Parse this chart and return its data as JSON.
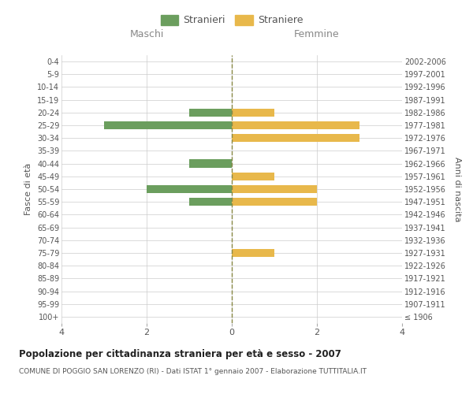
{
  "age_groups": [
    "100+",
    "95-99",
    "90-94",
    "85-89",
    "80-84",
    "75-79",
    "70-74",
    "65-69",
    "60-64",
    "55-59",
    "50-54",
    "45-49",
    "40-44",
    "35-39",
    "30-34",
    "25-29",
    "20-24",
    "15-19",
    "10-14",
    "5-9",
    "0-4"
  ],
  "birth_years": [
    "≤ 1906",
    "1907-1911",
    "1912-1916",
    "1917-1921",
    "1922-1926",
    "1927-1931",
    "1932-1936",
    "1937-1941",
    "1942-1946",
    "1947-1951",
    "1952-1956",
    "1957-1961",
    "1962-1966",
    "1967-1971",
    "1972-1976",
    "1977-1981",
    "1982-1986",
    "1987-1991",
    "1992-1996",
    "1997-2001",
    "2002-2006"
  ],
  "males": [
    0,
    0,
    0,
    0,
    0,
    0,
    0,
    0,
    0,
    1,
    2,
    0,
    1,
    0,
    0,
    3,
    1,
    0,
    0,
    0,
    0
  ],
  "females": [
    0,
    0,
    0,
    0,
    0,
    1,
    0,
    0,
    0,
    2,
    2,
    1,
    0,
    0,
    3,
    3,
    1,
    0,
    0,
    0,
    0
  ],
  "male_color": "#6b9e5e",
  "female_color": "#e8b84b",
  "background_color": "#ffffff",
  "grid_color": "#cccccc",
  "center_line_color": "#888844",
  "title": "Popolazione per cittadinanza straniera per età e sesso - 2007",
  "subtitle": "COMUNE DI POGGIO SAN LORENZO (RI) - Dati ISTAT 1° gennaio 2007 - Elaborazione TUTTITALIA.IT",
  "xlabel_left": "Maschi",
  "xlabel_right": "Femmine",
  "ylabel_left": "Fasce di età",
  "ylabel_right": "Anni di nascita",
  "legend_male": "Stranieri",
  "legend_female": "Straniere",
  "xlim": 4,
  "xticks": [
    -4,
    -2,
    0,
    2,
    4
  ],
  "xticklabels": [
    "4",
    "2",
    "0",
    "2",
    "4"
  ]
}
